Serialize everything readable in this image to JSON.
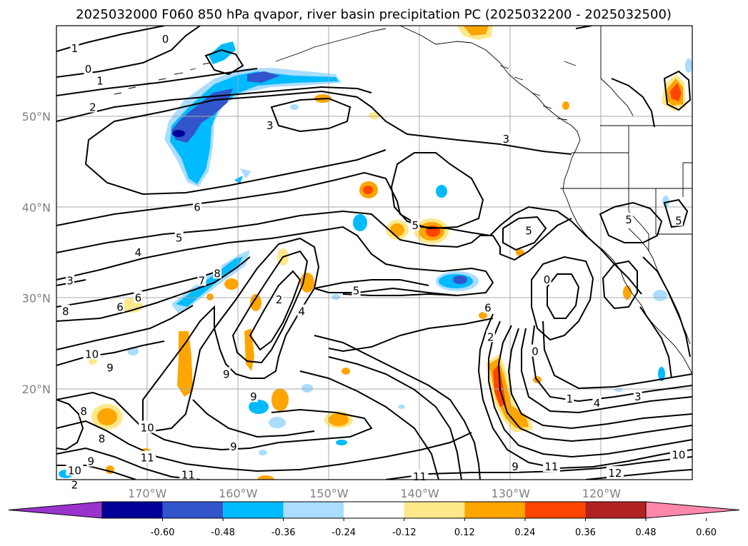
{
  "title": "2025032000 F060 850 hPa qvapor, river basin precipitation PC (2025032200 - 2025032500)",
  "map": {
    "lon_range": [
      -180,
      -110
    ],
    "lat_range": [
      10,
      60
    ],
    "lat_ticks": [
      {
        "value": 50,
        "label": "50°N"
      },
      {
        "value": 40,
        "label": "40°N"
      },
      {
        "value": 30,
        "label": "30°N"
      },
      {
        "value": 20,
        "label": "20°N"
      }
    ],
    "lon_ticks": [
      {
        "value": -170,
        "label": "170°W"
      },
      {
        "value": -160,
        "label": "160°W"
      },
      {
        "value": -150,
        "label": "150°W"
      },
      {
        "value": -140,
        "label": "140°W"
      },
      {
        "value": -130,
        "label": "130°W"
      },
      {
        "value": -120,
        "label": "120°W"
      }
    ],
    "gridlines": true
  },
  "colorbar": {
    "extend": "both",
    "colors": [
      "#9933cc",
      "#000099",
      "#3355cc",
      "#00bbff",
      "#aaddff",
      "#ffffff",
      "#ffe88a",
      "#ffa500",
      "#ff4500",
      "#b22222",
      "#ff88aa"
    ],
    "tick_labels": [
      "-0.60",
      "-0.48",
      "-0.36",
      "-0.24",
      "-0.12",
      "0.12",
      "0.24",
      "0.36",
      "0.48",
      "0.60"
    ]
  },
  "contour_labels": [
    {
      "text": "1",
      "lon": -178,
      "lat": 57.5
    },
    {
      "text": "0",
      "lon": -176.5,
      "lat": 55.2
    },
    {
      "text": "1",
      "lon": -175.2,
      "lat": 53.9
    },
    {
      "text": "2",
      "lon": -176,
      "lat": 51
    },
    {
      "text": "0",
      "lon": -168,
      "lat": 58.5
    },
    {
      "text": "3",
      "lon": -156.5,
      "lat": 49
    },
    {
      "text": "3",
      "lon": -130.5,
      "lat": 47.5
    },
    {
      "text": "6",
      "lon": -164.5,
      "lat": 40
    },
    {
      "text": "5",
      "lon": -166.5,
      "lat": 36.6
    },
    {
      "text": "4",
      "lon": -171,
      "lat": 35
    },
    {
      "text": "3",
      "lon": -178.5,
      "lat": 31.9
    },
    {
      "text": "5",
      "lon": -140.5,
      "lat": 38
    },
    {
      "text": "5",
      "lon": -128,
      "lat": 37.4
    },
    {
      "text": "5",
      "lon": -117,
      "lat": 38.6
    },
    {
      "text": "5",
      "lon": -111.5,
      "lat": 38.5
    },
    {
      "text": "5",
      "lon": -147,
      "lat": 30.8
    },
    {
      "text": "0",
      "lon": -126,
      "lat": 32
    },
    {
      "text": "6",
      "lon": -132.5,
      "lat": 28.9
    },
    {
      "text": "2",
      "lon": -132.2,
      "lat": 25.7
    },
    {
      "text": "0",
      "lon": -127.3,
      "lat": 24.1
    },
    {
      "text": "7",
      "lon": -164,
      "lat": 31.9
    },
    {
      "text": "8",
      "lon": -162.3,
      "lat": 32.7
    },
    {
      "text": "6",
      "lon": -173,
      "lat": 29
    },
    {
      "text": "6",
      "lon": -171,
      "lat": 30
    },
    {
      "text": "8",
      "lon": -179,
      "lat": 28.5
    },
    {
      "text": "4",
      "lon": -153,
      "lat": 28.5
    },
    {
      "text": "2",
      "lon": -155.5,
      "lat": 29.8
    },
    {
      "text": "10",
      "lon": -176.1,
      "lat": 23.8
    },
    {
      "text": "9",
      "lon": -174.1,
      "lat": 22.3
    },
    {
      "text": "9",
      "lon": -161.3,
      "lat": 21.6
    },
    {
      "text": "9",
      "lon": -158.3,
      "lat": 19.1
    },
    {
      "text": "8",
      "lon": -177,
      "lat": 17.5
    },
    {
      "text": "8",
      "lon": -175,
      "lat": 14.5
    },
    {
      "text": "9",
      "lon": -176.2,
      "lat": 12
    },
    {
      "text": "10",
      "lon": -178,
      "lat": 11
    },
    {
      "text": "10",
      "lon": -170,
      "lat": 15.7
    },
    {
      "text": "11",
      "lon": -170,
      "lat": 12.4
    },
    {
      "text": "11",
      "lon": -165.5,
      "lat": 10.5
    },
    {
      "text": "9",
      "lon": -160.5,
      "lat": 13.6
    },
    {
      "text": "11",
      "lon": -140,
      "lat": 10.3
    },
    {
      "text": "9",
      "lon": -129.5,
      "lat": 11.4
    },
    {
      "text": "11",
      "lon": -125.5,
      "lat": 11.4
    },
    {
      "text": "12",
      "lon": -118.5,
      "lat": 10.7
    },
    {
      "text": "10",
      "lon": -111.5,
      "lat": 12.7
    },
    {
      "text": "1",
      "lon": -123.5,
      "lat": 18.9
    },
    {
      "text": "4",
      "lon": -120.5,
      "lat": 18.4
    },
    {
      "text": "3",
      "lon": -116,
      "lat": 19.1
    },
    {
      "text": "2",
      "lon": -178,
      "lat": 9.4
    }
  ],
  "legend_note": ""
}
